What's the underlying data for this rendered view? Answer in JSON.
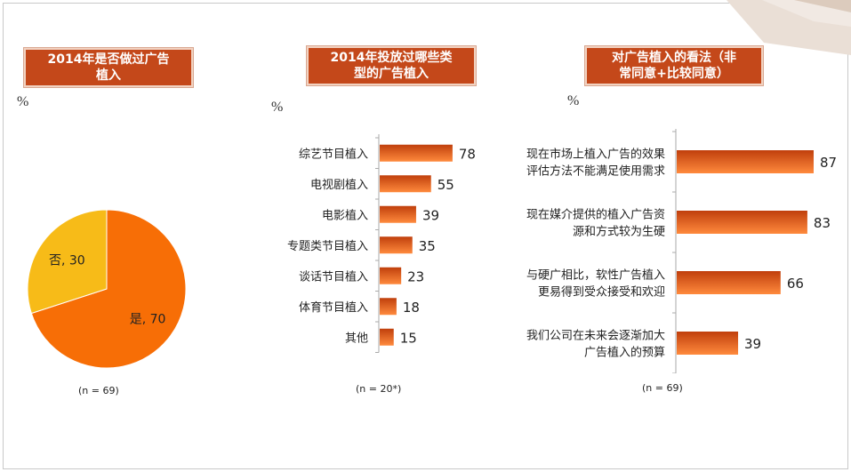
{
  "colors": {
    "title_bg": "#c4481a",
    "bar_dark": "#c03f0c",
    "bar_light": "#ff8a3d",
    "pie_yes": "#f76e06",
    "pie_no": "#f7bb18",
    "axis": "#aaaaaa"
  },
  "chart_data": [
    {
      "type": "pie",
      "title": "2014年是否做过广告植入",
      "unit": "%",
      "slices": [
        {
          "label": "是, 70",
          "name": "是",
          "value": 70
        },
        {
          "label": "否, 30",
          "name": "否",
          "value": 30
        }
      ],
      "note": "(n =  69)"
    },
    {
      "type": "bar",
      "orientation": "horizontal",
      "title": "2014年投放过哪些类型的广告植入",
      "unit": "%",
      "categories": [
        "综艺节目植入",
        "电视剧植入",
        "电影植入",
        "专题类节目植入",
        "谈话节目植入",
        "体育节目植入",
        "其他"
      ],
      "values": [
        78,
        55,
        39,
        35,
        23,
        18,
        15
      ],
      "note": "(n =  20*)"
    },
    {
      "type": "bar",
      "orientation": "horizontal",
      "title": "对广告植入的看法（非常同意+比较同意）",
      "unit": "%",
      "categories": [
        [
          "现在市场上植入广告的效果",
          "评估方法不能满足使用需求"
        ],
        [
          "现在媒介提供的植入广告资",
          "源和方式较为生硬"
        ],
        [
          "与硬广相比，软性广告植入",
          "更易得到受众接受和欢迎"
        ],
        [
          "我们公司在未来会逐渐加大",
          "广告植入的预算"
        ]
      ],
      "values": [
        87,
        83,
        66,
        39
      ],
      "note": "(n =  69)"
    }
  ],
  "panel1": {
    "title_line1": "2014年是否做过广告",
    "title_line2": "植入",
    "pct": "%",
    "note": "(n =  69)"
  },
  "panel2": {
    "title_line1": "2014年投放过哪些类",
    "title_line2": "型的广告植入",
    "pct": "%",
    "note": "(n =  20*)"
  },
  "panel3": {
    "title_line1": "对广告植入的看法（非",
    "title_line2": "常同意+比较同意）",
    "pct": "%",
    "note": "(n =  69)"
  }
}
